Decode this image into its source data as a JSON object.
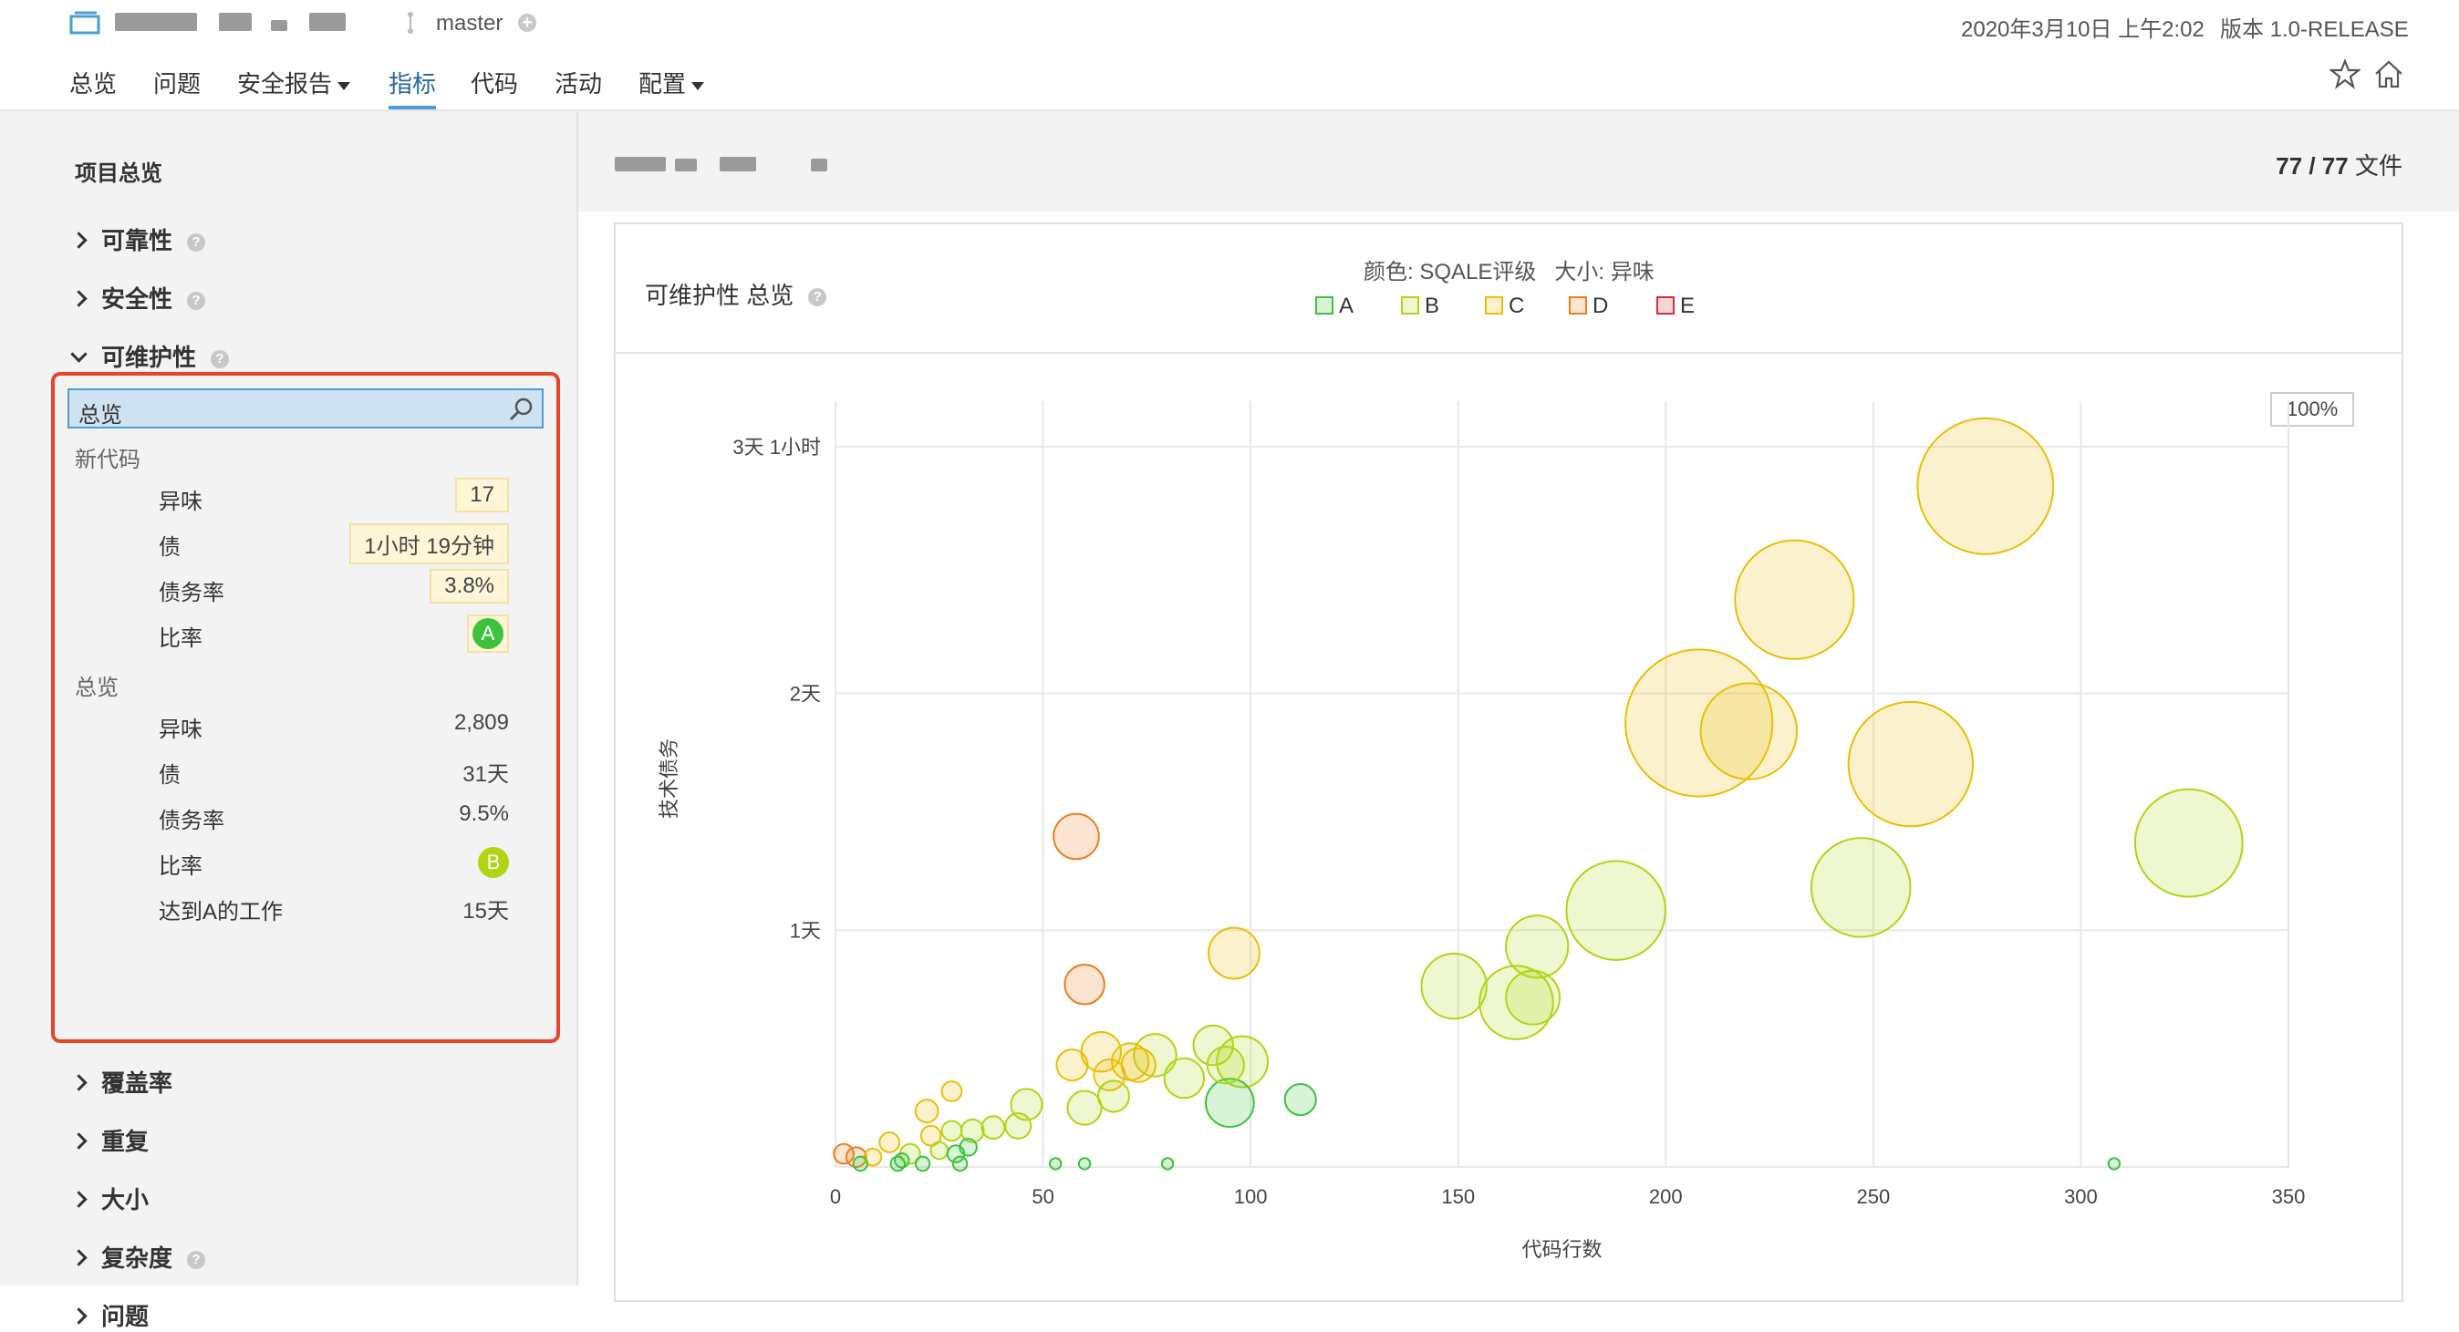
{
  "header": {
    "branch": "master",
    "datetime": "2020年3月10日 上午2:02",
    "version": "版本 1.0-RELEASE",
    "tabs": [
      {
        "label": "总览",
        "dropdown": false,
        "active": false
      },
      {
        "label": "问题",
        "dropdown": false,
        "active": false
      },
      {
        "label": "安全报告",
        "dropdown": true,
        "active": false
      },
      {
        "label": "指标",
        "dropdown": false,
        "active": true
      },
      {
        "label": "代码",
        "dropdown": false,
        "active": false
      },
      {
        "label": "活动",
        "dropdown": false,
        "active": false
      },
      {
        "label": "配置",
        "dropdown": true,
        "active": false
      }
    ],
    "icons": {
      "star": "star-icon",
      "home": "home-icon",
      "branch": "branch-icon",
      "add": "plus-circle-icon",
      "project": "folder-icon"
    }
  },
  "sidebar": {
    "title": "项目总览",
    "sections_top": [
      {
        "label": "可靠性",
        "help": true,
        "expanded": false
      },
      {
        "label": "安全性",
        "help": true,
        "expanded": false
      },
      {
        "label": "可维护性",
        "help": true,
        "expanded": true
      }
    ],
    "search_value": "总览",
    "new_code_heading": "新代码",
    "new_code": [
      {
        "label": "异味",
        "value": "17"
      },
      {
        "label": "债",
        "value": "1小时 19分钟"
      },
      {
        "label": "债务率",
        "value": "3.8%"
      },
      {
        "label": "比率",
        "grade": "A"
      }
    ],
    "overall_heading": "总览",
    "overall": [
      {
        "label": "异味",
        "value": "2,809"
      },
      {
        "label": "债",
        "value": "31天"
      },
      {
        "label": "债务率",
        "value": "9.5%"
      },
      {
        "label": "比率",
        "grade": "B"
      },
      {
        "label": "达到A的工作",
        "value": "15天"
      }
    ],
    "sections_bottom": [
      {
        "label": "覆盖率",
        "help": false
      },
      {
        "label": "重复",
        "help": false
      },
      {
        "label": "大小",
        "help": false
      },
      {
        "label": "复杂度",
        "help": true
      },
      {
        "label": "问题",
        "help": false
      }
    ]
  },
  "main": {
    "file_count": "77 / 77",
    "file_unit": "文件",
    "chart_title": "可维护性 总览",
    "legend_caption": "颜色: SQALE评级   大小: 异味",
    "zoom": "100%"
  },
  "colors": {
    "accent": "#236a97",
    "highlight_border": "#e8442a",
    "A": "#3ec23e",
    "B": "#b0d513",
    "C": "#eabe06",
    "D": "#ed7d20",
    "E": "#d02f3a"
  },
  "chart_data": {
    "type": "scatter",
    "xlabel": "代码行数",
    "ylabel": "技术债务",
    "xlim": [
      0,
      350
    ],
    "x_ticks": [
      0,
      50,
      100,
      150,
      200,
      250,
      300,
      350
    ],
    "y_ticks_minutes": [
      1440,
      2880,
      4380
    ],
    "y_tick_labels": [
      "1天",
      "2天",
      "3天 1小时"
    ],
    "ylim_minutes": [
      0,
      4380
    ],
    "grid": true,
    "legend": {
      "position": "top",
      "entries": [
        "A",
        "B",
        "C",
        "D",
        "E"
      ]
    },
    "size_metric": "异味",
    "points": [
      {
        "x": 277,
        "y": 4140,
        "r": 48,
        "g": "C"
      },
      {
        "x": 231,
        "y": 3450,
        "r": 42,
        "g": "C"
      },
      {
        "x": 208,
        "y": 2700,
        "r": 52,
        "g": "C"
      },
      {
        "x": 220,
        "y": 2650,
        "r": 34,
        "g": "C"
      },
      {
        "x": 259,
        "y": 2450,
        "r": 44,
        "g": "C"
      },
      {
        "x": 326,
        "y": 1970,
        "r": 38,
        "g": "B"
      },
      {
        "x": 247,
        "y": 1700,
        "r": 35,
        "g": "B"
      },
      {
        "x": 188,
        "y": 1560,
        "r": 35,
        "g": "B"
      },
      {
        "x": 169,
        "y": 1340,
        "r": 22,
        "g": "B"
      },
      {
        "x": 149,
        "y": 1100,
        "r": 23,
        "g": "B"
      },
      {
        "x": 164,
        "y": 1000,
        "r": 26,
        "g": "B"
      },
      {
        "x": 168,
        "y": 1030,
        "r": 19,
        "g": "B"
      },
      {
        "x": 96,
        "y": 1300,
        "r": 18,
        "g": "C"
      },
      {
        "x": 58,
        "y": 2010,
        "r": 16,
        "g": "D"
      },
      {
        "x": 60,
        "y": 1110,
        "r": 14,
        "g": "D"
      },
      {
        "x": 112,
        "y": 410,
        "r": 11,
        "g": "A"
      },
      {
        "x": 95,
        "y": 390,
        "r": 17,
        "g": "A"
      },
      {
        "x": 98,
        "y": 640,
        "r": 18,
        "g": "B"
      },
      {
        "x": 91,
        "y": 740,
        "r": 14,
        "g": "B"
      },
      {
        "x": 94,
        "y": 620,
        "r": 13,
        "g": "B"
      },
      {
        "x": 84,
        "y": 540,
        "r": 14,
        "g": "B"
      },
      {
        "x": 77,
        "y": 680,
        "r": 15,
        "g": "B"
      },
      {
        "x": 71,
        "y": 640,
        "r": 13,
        "g": "C"
      },
      {
        "x": 73,
        "y": 620,
        "r": 12,
        "g": "C"
      },
      {
        "x": 64,
        "y": 700,
        "r": 14,
        "g": "C"
      },
      {
        "x": 57,
        "y": 620,
        "r": 11,
        "g": "C"
      },
      {
        "x": 66,
        "y": 560,
        "r": 11,
        "g": "C"
      },
      {
        "x": 67,
        "y": 430,
        "r": 11,
        "g": "B"
      },
      {
        "x": 60,
        "y": 360,
        "r": 12,
        "g": "B"
      },
      {
        "x": 46,
        "y": 380,
        "r": 11,
        "g": "B"
      },
      {
        "x": 44,
        "y": 250,
        "r": 9,
        "g": "B"
      },
      {
        "x": 38,
        "y": 240,
        "r": 8,
        "g": "B"
      },
      {
        "x": 33,
        "y": 220,
        "r": 8,
        "g": "B"
      },
      {
        "x": 28,
        "y": 220,
        "r": 7,
        "g": "B"
      },
      {
        "x": 28,
        "y": 460,
        "r": 7,
        "g": "C"
      },
      {
        "x": 22,
        "y": 340,
        "r": 8,
        "g": "C"
      },
      {
        "x": 23,
        "y": 190,
        "r": 7,
        "g": "C"
      },
      {
        "x": 13,
        "y": 150,
        "r": 7,
        "g": "C"
      },
      {
        "x": 18,
        "y": 80,
        "r": 7,
        "g": "B"
      },
      {
        "x": 25,
        "y": 100,
        "r": 6,
        "g": "B"
      },
      {
        "x": 32,
        "y": 120,
        "r": 6,
        "g": "A"
      },
      {
        "x": 29,
        "y": 80,
        "r": 6,
        "g": "A"
      },
      {
        "x": 16,
        "y": 40,
        "r": 5,
        "g": "A"
      },
      {
        "x": 21,
        "y": 20,
        "r": 5,
        "g": "A"
      },
      {
        "x": 30,
        "y": 20,
        "r": 5,
        "g": "A"
      },
      {
        "x": 15,
        "y": 20,
        "r": 5,
        "g": "A"
      },
      {
        "x": 5,
        "y": 60,
        "r": 7,
        "g": "D"
      },
      {
        "x": 2,
        "y": 80,
        "r": 7,
        "g": "D"
      },
      {
        "x": 9,
        "y": 60,
        "r": 6,
        "g": "C"
      },
      {
        "x": 6,
        "y": 20,
        "r": 5,
        "g": "A"
      },
      {
        "x": 53,
        "y": 20,
        "r": 4,
        "g": "A"
      },
      {
        "x": 60,
        "y": 20,
        "r": 4,
        "g": "A"
      },
      {
        "x": 80,
        "y": 20,
        "r": 4,
        "g": "A"
      },
      {
        "x": 308,
        "y": 20,
        "r": 4,
        "g": "A"
      }
    ]
  }
}
